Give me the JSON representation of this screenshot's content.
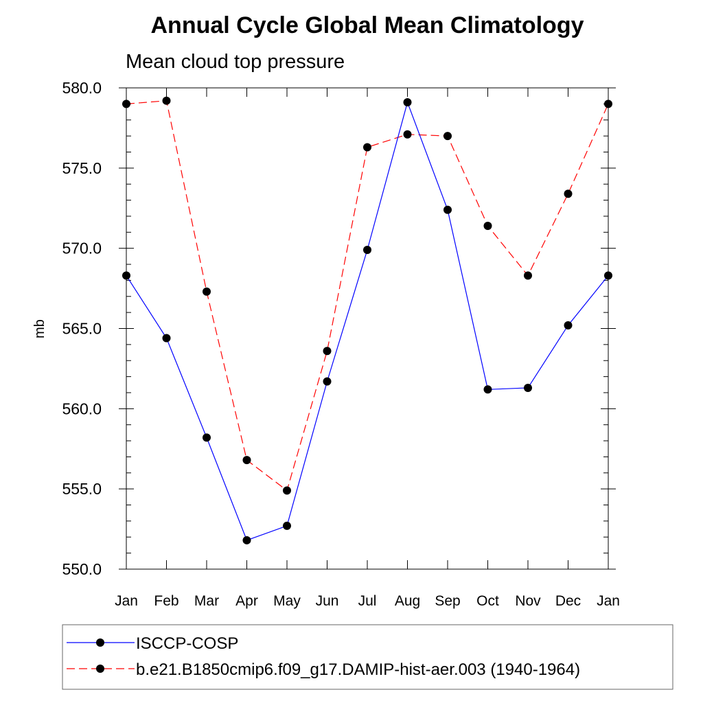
{
  "chart_data": {
    "type": "line",
    "title": "Annual Cycle Global Mean Climatology",
    "subtitle": "Mean cloud top pressure",
    "xlabel": "",
    "ylabel": "mb",
    "categories": [
      "Jan",
      "Feb",
      "Mar",
      "Apr",
      "May",
      "Jun",
      "Jul",
      "Aug",
      "Sep",
      "Oct",
      "Nov",
      "Dec",
      "Jan"
    ],
    "ylim": [
      550.0,
      580.0
    ],
    "yticks": [
      "550.0",
      "555.0",
      "560.0",
      "565.0",
      "570.0",
      "575.0",
      "580.0"
    ],
    "grid": false,
    "legend_position": "bottom",
    "series": [
      {
        "name": "ISCCP-COSP",
        "color": "#0000ff",
        "dash": "solid",
        "values": [
          568.3,
          564.4,
          558.2,
          551.8,
          552.7,
          561.7,
          569.9,
          579.1,
          572.4,
          561.2,
          561.3,
          565.2,
          568.3
        ]
      },
      {
        "name": "b.e21.B1850cmip6.f09_g17.DAMIP-hist-aer.003 (1940-1964)",
        "color": "#ff0000",
        "dash": "dashed",
        "values": [
          579.0,
          579.2,
          567.3,
          556.8,
          554.9,
          563.6,
          576.3,
          577.1,
          577.0,
          571.4,
          568.3,
          573.4,
          579.0
        ]
      }
    ]
  }
}
